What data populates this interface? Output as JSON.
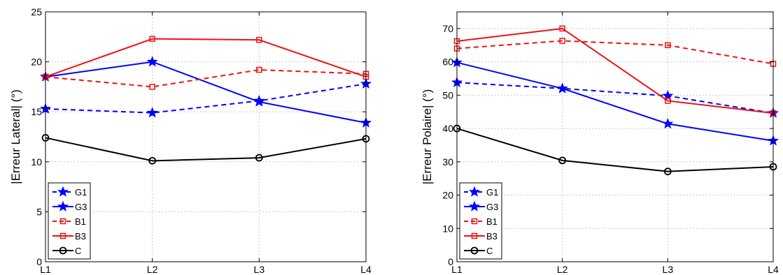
{
  "colors": {
    "blue": "#0000ff",
    "red": "#ee1111",
    "black": "#000000"
  },
  "chart_data": [
    {
      "type": "line",
      "categories": [
        "L1",
        "L2",
        "L3",
        "L4"
      ],
      "ylabel": "|Erreur Lateral| (°)",
      "ylim": [
        0,
        25
      ],
      "yticks": [
        0,
        5,
        10,
        15,
        20,
        25
      ],
      "grid": true,
      "legend_position": "bottom-left",
      "series": [
        {
          "name": "G1",
          "values": [
            15.3,
            14.9,
            16.1,
            17.8
          ],
          "color": "#0000ff",
          "dash": "dashed",
          "marker": "star"
        },
        {
          "name": "G3",
          "values": [
            18.5,
            20.0,
            16.0,
            13.9
          ],
          "color": "#0000ff",
          "dash": "solid",
          "marker": "star"
        },
        {
          "name": "B1",
          "values": [
            18.5,
            17.5,
            19.2,
            18.8
          ],
          "color": "#ee1111",
          "dash": "dashed",
          "marker": "square"
        },
        {
          "name": "B3",
          "values": [
            18.5,
            22.3,
            22.2,
            18.5
          ],
          "color": "#ee1111",
          "dash": "solid",
          "marker": "square"
        },
        {
          "name": "C",
          "values": [
            12.4,
            10.1,
            10.4,
            12.3
          ],
          "color": "#000000",
          "dash": "solid",
          "marker": "circle"
        }
      ]
    },
    {
      "type": "line",
      "categories": [
        "L1",
        "L2",
        "L3",
        "L4"
      ],
      "ylabel": "|Erreur Polaire| (°)",
      "ylim": [
        0,
        75
      ],
      "yticks": [
        0,
        10,
        20,
        30,
        40,
        50,
        60,
        70
      ],
      "grid": true,
      "legend_position": "bottom-left",
      "series": [
        {
          "name": "G1",
          "values": [
            53.8,
            52.0,
            49.8,
            44.6
          ],
          "color": "#0000ff",
          "dash": "dashed",
          "marker": "star"
        },
        {
          "name": "G3",
          "values": [
            59.8,
            52.0,
            41.4,
            36.3
          ],
          "color": "#0000ff",
          "dash": "solid",
          "marker": "star"
        },
        {
          "name": "B1",
          "values": [
            64.0,
            66.3,
            65.0,
            59.4
          ],
          "color": "#ee1111",
          "dash": "dashed",
          "marker": "square"
        },
        {
          "name": "B3",
          "values": [
            66.2,
            70.0,
            48.3,
            44.6
          ],
          "color": "#ee1111",
          "dash": "solid",
          "marker": "square"
        },
        {
          "name": "C",
          "values": [
            40.0,
            30.4,
            27.1,
            28.5
          ],
          "color": "#000000",
          "dash": "solid",
          "marker": "circle"
        }
      ]
    }
  ]
}
